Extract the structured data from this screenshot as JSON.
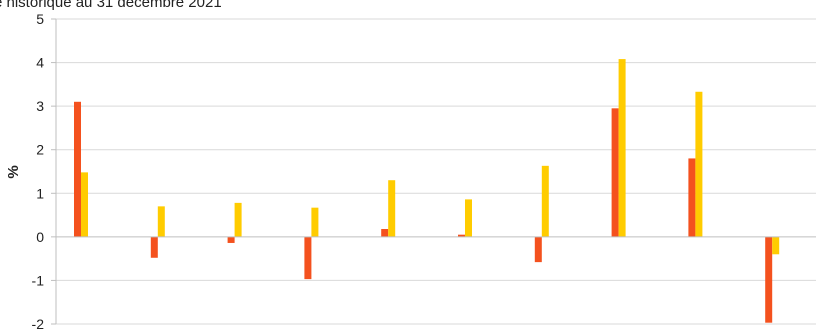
{
  "chart_data": {
    "type": "bar",
    "subtitle": "e historique au 31 décembre 2021",
    "ylabel": "%",
    "ylim": [
      -2,
      5
    ],
    "yticks": [
      -2,
      -1,
      0,
      1,
      2,
      3,
      4,
      5
    ],
    "categories": [
      "",
      "",
      "",
      "",
      "",
      "",
      "",
      "",
      "",
      ""
    ],
    "series": [
      {
        "color": "#f4511e",
        "values": [
          3.1,
          -0.48,
          -0.14,
          -0.97,
          0.18,
          0.05,
          -0.58,
          2.95,
          1.8,
          -1.97
        ]
      },
      {
        "color": "#ffcc00",
        "values": [
          1.48,
          0.7,
          0.78,
          0.67,
          1.3,
          0.86,
          1.63,
          4.08,
          3.33,
          -0.4
        ]
      }
    ],
    "grid": true,
    "legend": "none"
  }
}
